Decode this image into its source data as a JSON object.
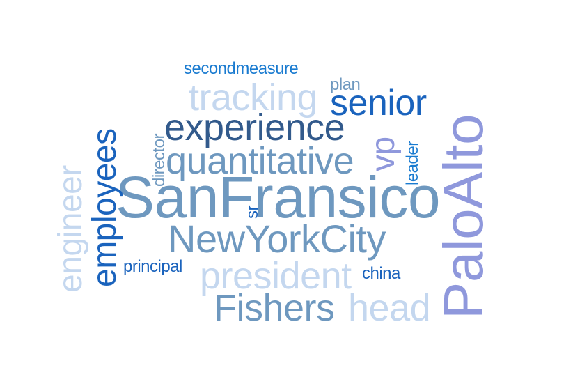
{
  "words": [
    {
      "text": "SanFransico",
      "color": "#6e98bf",
      "orientation": "horizontal"
    },
    {
      "text": "PaloAlto",
      "color": "#8f98dc",
      "orientation": "vertical"
    },
    {
      "text": "NewYorkCity",
      "color": "#6e98bf",
      "orientation": "horizontal"
    },
    {
      "text": "experience",
      "color": "#325a8c",
      "orientation": "horizontal"
    },
    {
      "text": "quantitative",
      "color": "#6e98bf",
      "orientation": "horizontal"
    },
    {
      "text": "senior",
      "color": "#1a63bd",
      "orientation": "horizontal"
    },
    {
      "text": "tracking",
      "color": "#c4d7ef",
      "orientation": "horizontal"
    },
    {
      "text": "president",
      "color": "#c4d7ef",
      "orientation": "horizontal"
    },
    {
      "text": "Fishers",
      "color": "#6e98bf",
      "orientation": "horizontal"
    },
    {
      "text": "head",
      "color": "#c4d7ef",
      "orientation": "horizontal"
    },
    {
      "text": "employees",
      "color": "#1a63bd",
      "orientation": "vertical"
    },
    {
      "text": "engineer",
      "color": "#c4d7ef",
      "orientation": "vertical"
    },
    {
      "text": "vp",
      "color": "#8f98dc",
      "orientation": "vertical"
    },
    {
      "text": "secondmeasure",
      "color": "#1a7bd0",
      "orientation": "horizontal"
    },
    {
      "text": "plan",
      "color": "#6e98bf",
      "orientation": "horizontal"
    },
    {
      "text": "director",
      "color": "#6e98bf",
      "orientation": "vertical"
    },
    {
      "text": "leader",
      "color": "#1a7bd0",
      "orientation": "vertical"
    },
    {
      "text": "sr",
      "color": "#1a63bd",
      "orientation": "vertical"
    },
    {
      "text": "principal",
      "color": "#1a63bd",
      "orientation": "horizontal"
    },
    {
      "text": "china",
      "color": "#1a63bd",
      "orientation": "horizontal"
    }
  ]
}
